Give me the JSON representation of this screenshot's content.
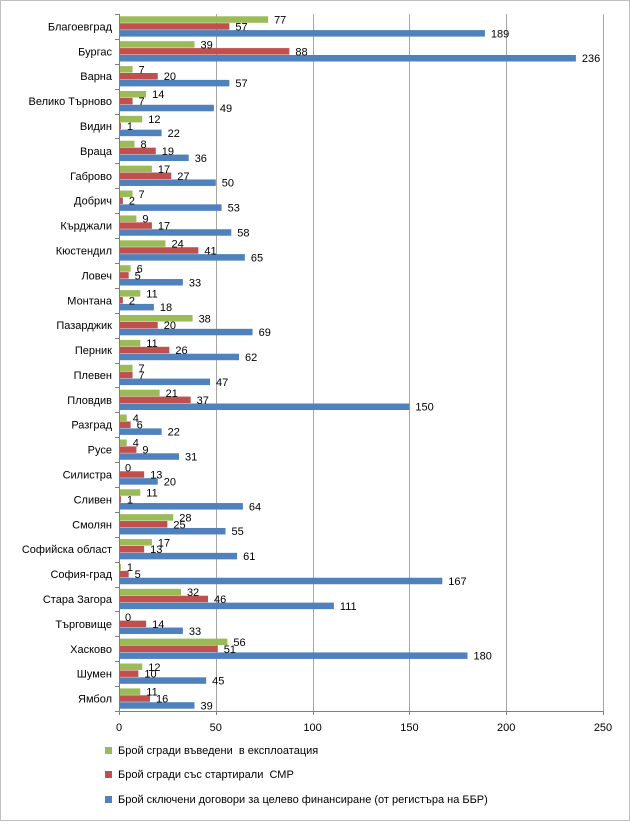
{
  "chart_data": {
    "type": "bar",
    "orientation": "horizontal",
    "categories": [
      "Благоевград",
      "Бургас",
      "Варна",
      "Велико Търново",
      "Видин",
      "Враца",
      "Габрово",
      "Добрич",
      "Кърджали",
      "Кюстендил",
      "Ловеч",
      "Монтана",
      "Пазарджик",
      "Перник",
      "Плевен",
      "Пловдив",
      "Разград",
      "Русе",
      "Силистра",
      "Сливен",
      "Смолян",
      "Софийска област",
      "София-град",
      "Стара Загора",
      "Търговище",
      "Хасково",
      "Шумен",
      "Ямбол"
    ],
    "series": [
      {
        "name": "Брой сгради въведени  в експлоатация",
        "color": "#9BBB59",
        "values": [
          77,
          39,
          7,
          14,
          12,
          8,
          17,
          7,
          9,
          24,
          6,
          11,
          38,
          11,
          7,
          21,
          4,
          4,
          0,
          11,
          28,
          17,
          1,
          32,
          0,
          56,
          12,
          11
        ]
      },
      {
        "name": "Брой сгради със стартирали  СМР",
        "color": "#C0504D",
        "values": [
          57,
          88,
          20,
          7,
          1,
          19,
          27,
          2,
          17,
          41,
          5,
          2,
          20,
          26,
          7,
          37,
          6,
          9,
          13,
          1,
          25,
          13,
          5,
          46,
          14,
          51,
          10,
          16
        ]
      },
      {
        "name": "Брой сключени договори за целево финансиране (от регистъра на ББР)",
        "color": "#4F81BD",
        "values": [
          189,
          236,
          57,
          49,
          22,
          36,
          50,
          53,
          58,
          65,
          33,
          18,
          69,
          62,
          47,
          150,
          22,
          31,
          20,
          64,
          55,
          61,
          167,
          111,
          33,
          180,
          45,
          39
        ]
      }
    ],
    "xlim": [
      0,
      250
    ],
    "xticks": [
      0,
      50,
      100,
      150,
      200,
      250
    ],
    "grid": true,
    "legend_position": "bottom"
  }
}
